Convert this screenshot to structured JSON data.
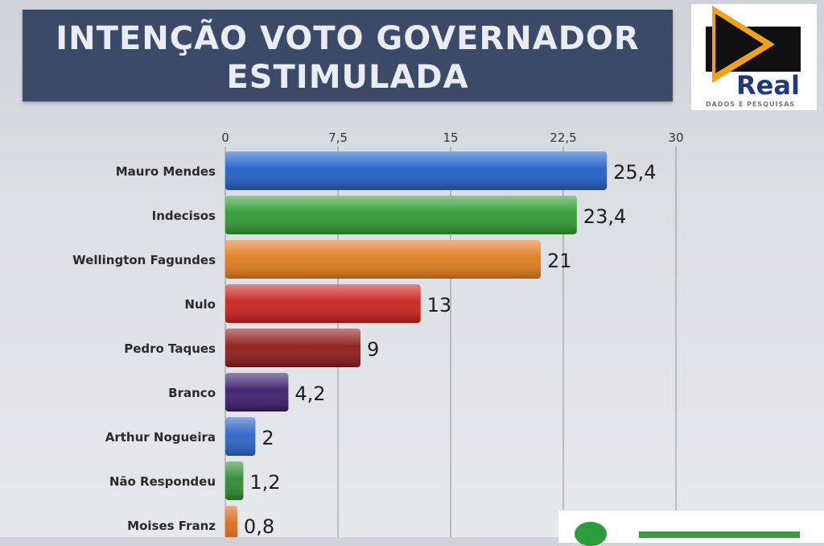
{
  "title": {
    "line1": "INTENÇÃO VOTO GOVERNADOR",
    "line2": "ESTIMULADA"
  },
  "logo": {
    "name": "Real",
    "tagline": "DADOS E PESQUISAS",
    "colors": {
      "triangle": "#f0a21a",
      "square": "#111111",
      "text": "#1e3a7c"
    }
  },
  "chart_data": {
    "type": "bar",
    "orientation": "horizontal",
    "title": "INTENÇÃO VOTO GOVERNADOR ESTIMULADA",
    "categories": [
      "Mauro Mendes",
      "Indecisos",
      "Wellington Fagundes",
      "Nulo",
      "Pedro Taques",
      "Branco",
      "Arthur Nogueira",
      "Não Respondeu",
      "Moises Franz"
    ],
    "values": [
      25.4,
      23.4,
      21,
      13,
      9,
      4.2,
      2,
      1.2,
      0.8
    ],
    "value_labels": [
      "25,4",
      "23,4",
      "21",
      "13",
      "9",
      "4,2",
      "2",
      "1,2",
      "0,8"
    ],
    "colors": [
      "#1f5fc8",
      "#2f9a2f",
      "#e07a1c",
      "#c8201a",
      "#8c1a1a",
      "#3b1d6e",
      "#2a63c4",
      "#2f8a2f",
      "#d86a1a"
    ],
    "xlim": [
      0,
      30
    ],
    "xticks": [
      0,
      7.5,
      15,
      22.5,
      30
    ],
    "xtick_labels": [
      "0",
      "7,5",
      "15",
      "22,5",
      "30"
    ],
    "xlabel": "",
    "ylabel": "",
    "grid": true,
    "legend": "none"
  }
}
